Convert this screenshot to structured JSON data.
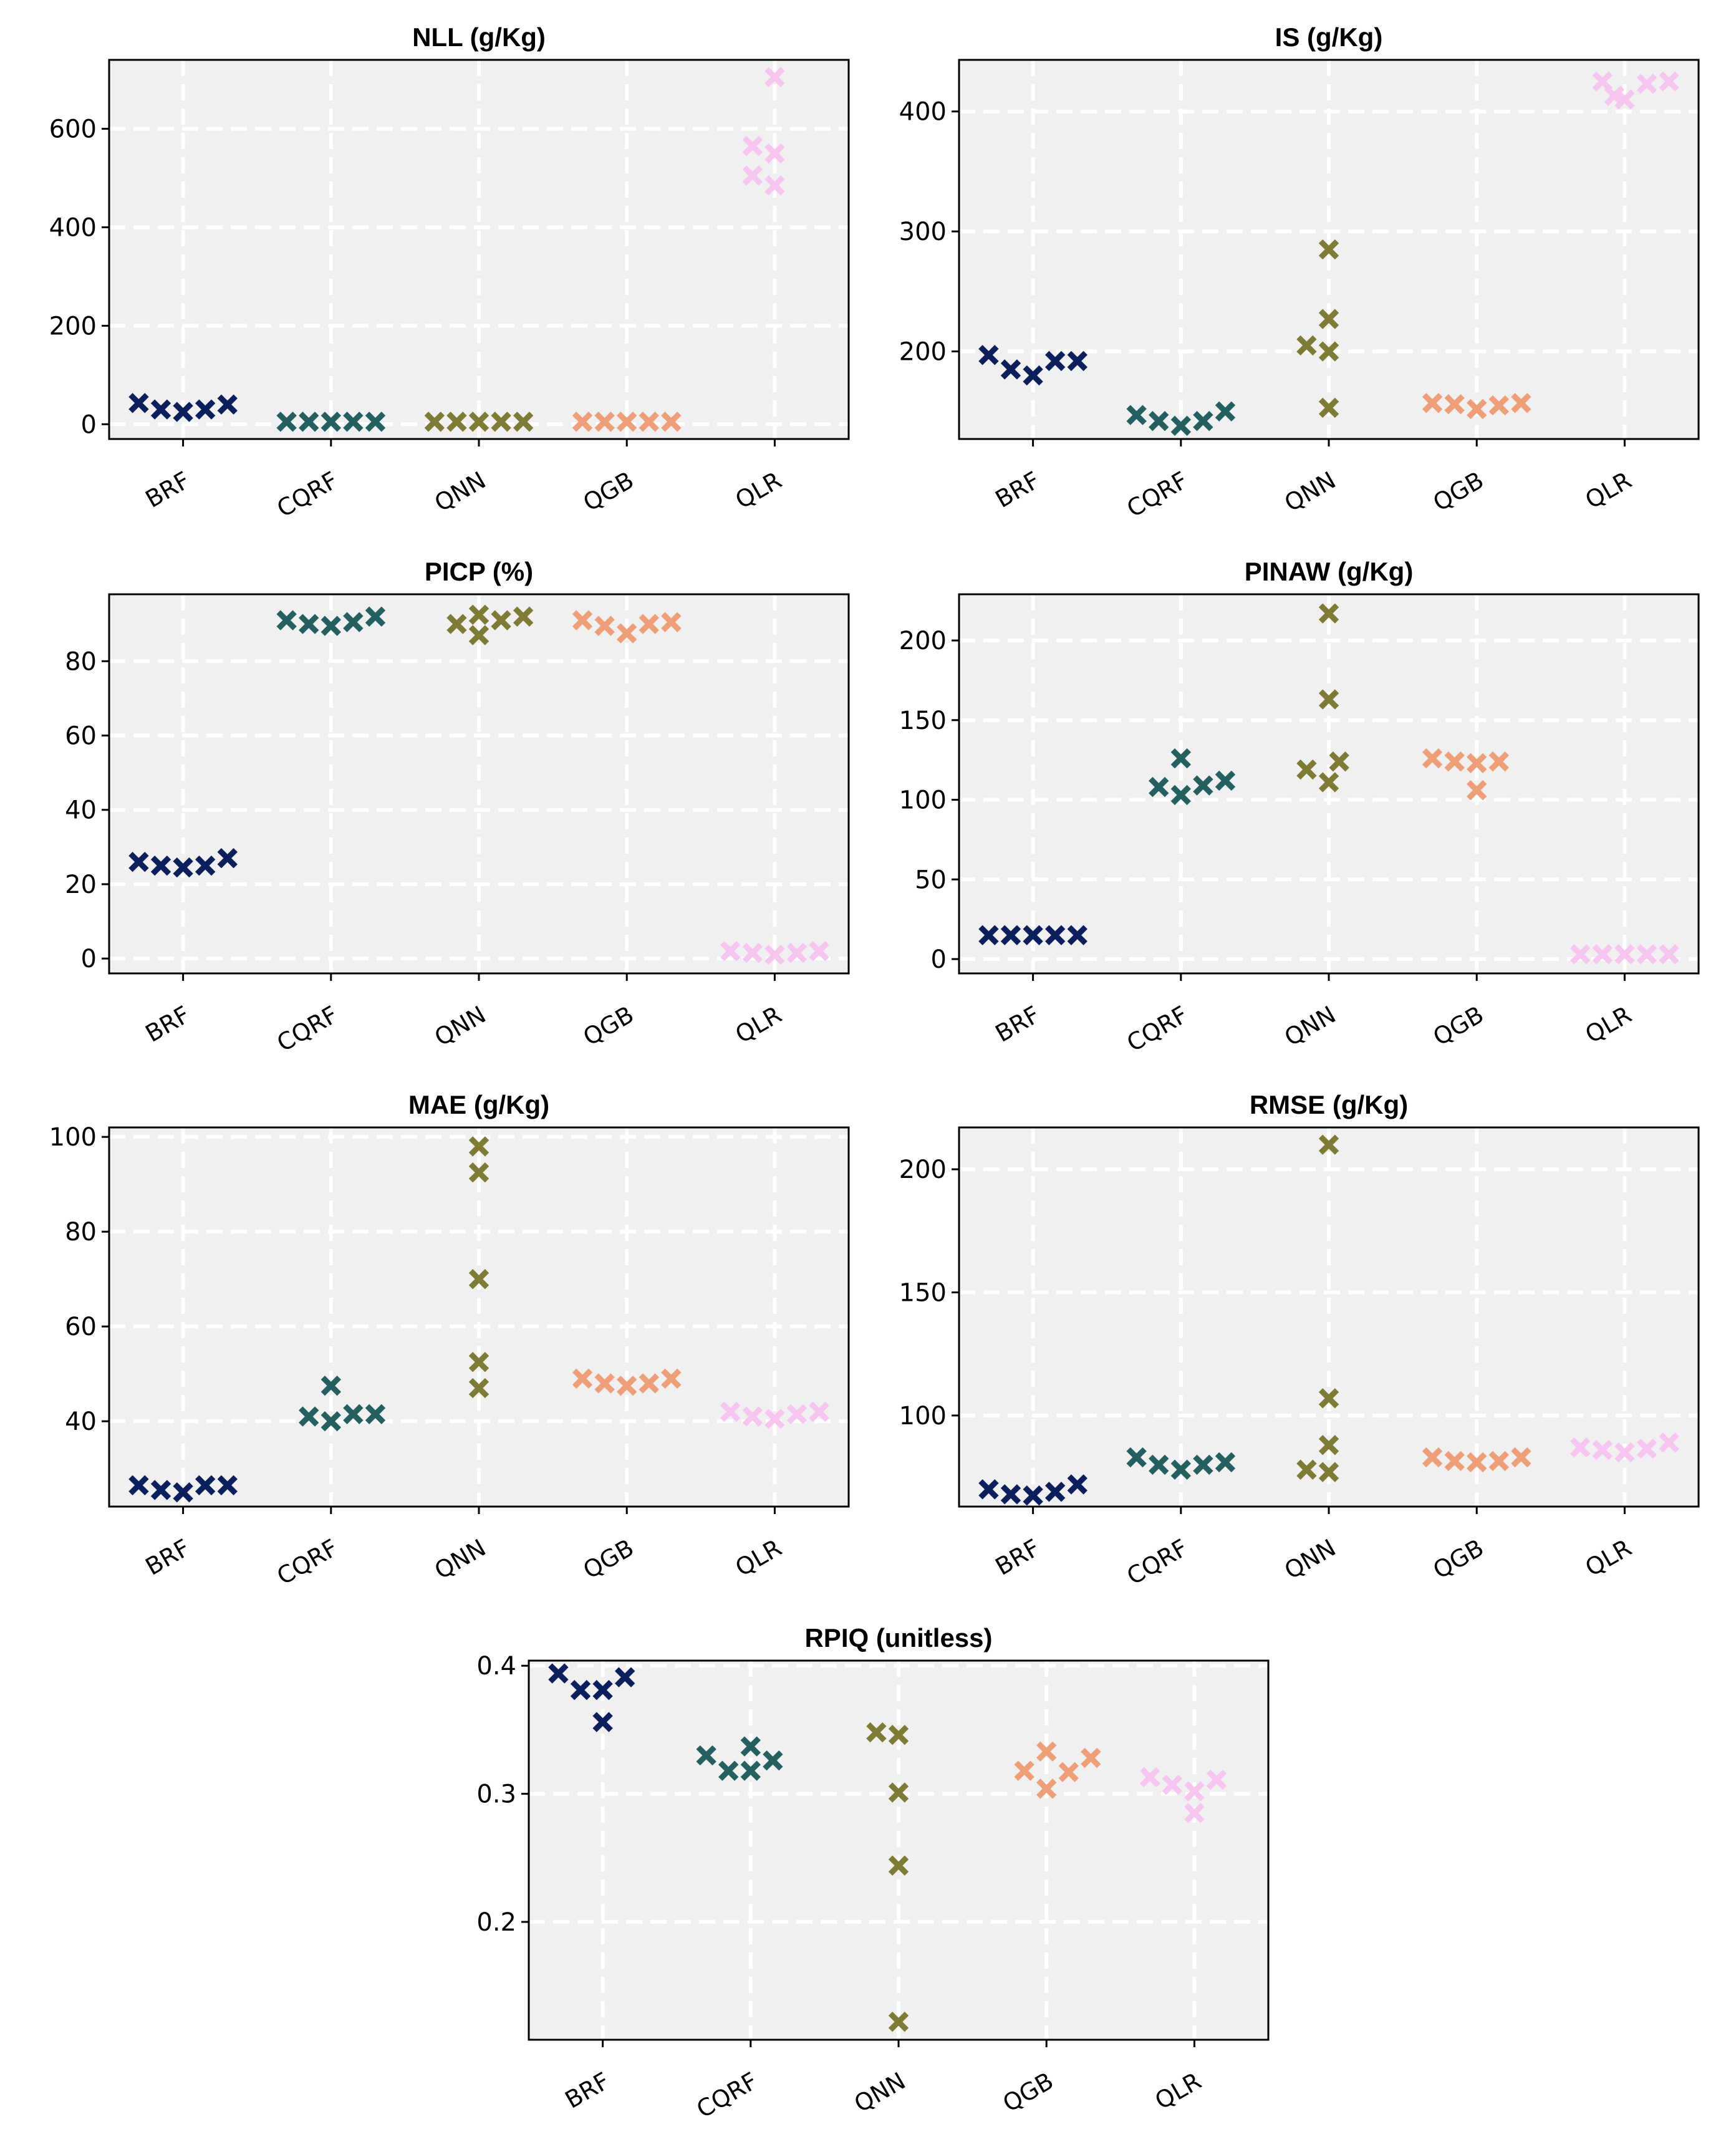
{
  "colors": {
    "plot_background": "#f0f0f0",
    "grid": "#ffffff",
    "axis": "#000000",
    "BRF": "#0b1f5c",
    "CQRF": "#23605f",
    "QNN": "#7e7b35",
    "QGB": "#ee9f78",
    "QLR": "#f7c6f0"
  },
  "chart_data": [
    {
      "type": "scatter",
      "title": "NLL (g/Kg)",
      "categories": [
        "BRF",
        "CQRF",
        "QNN",
        "QGB",
        "QLR"
      ],
      "yticks": [
        "0",
        "200",
        "400",
        "600"
      ],
      "ylim": [
        -30,
        740
      ],
      "grid": true,
      "marker": "x",
      "series": [
        {
          "values": [
            [
              -0.3,
              43
            ],
            [
              -0.15,
              30
            ],
            [
              0.0,
              25
            ],
            [
              0.15,
              30
            ],
            [
              0.3,
              40
            ]
          ]
        },
        {
          "values": [
            [
              -0.3,
              5
            ],
            [
              -0.15,
              5
            ],
            [
              0.0,
              5
            ],
            [
              0.15,
              5
            ],
            [
              0.3,
              5
            ]
          ]
        },
        {
          "values": [
            [
              -0.3,
              5
            ],
            [
              -0.15,
              5
            ],
            [
              0.0,
              5
            ],
            [
              0.15,
              5
            ],
            [
              0.3,
              5
            ]
          ]
        },
        {
          "values": [
            [
              -0.3,
              5
            ],
            [
              -0.15,
              5
            ],
            [
              0.0,
              5
            ],
            [
              0.15,
              5
            ],
            [
              0.3,
              5
            ]
          ]
        },
        {
          "values": [
            [
              -0.15,
              565
            ],
            [
              -0.15,
              505
            ],
            [
              0.0,
              705
            ],
            [
              0.0,
              550
            ],
            [
              0.0,
              485
            ]
          ]
        }
      ]
    },
    {
      "type": "scatter",
      "title": "IS (g/Kg)",
      "categories": [
        "BRF",
        "CQRF",
        "QNN",
        "QGB",
        "QLR"
      ],
      "yticks": [
        "200",
        "300",
        "400"
      ],
      "ylim": [
        127,
        443
      ],
      "grid": true,
      "marker": "x",
      "series": [
        {
          "values": [
            [
              -0.3,
              197
            ],
            [
              -0.15,
              185
            ],
            [
              0.0,
              180
            ],
            [
              0.15,
              192
            ],
            [
              0.3,
              192
            ]
          ]
        },
        {
          "values": [
            [
              -0.3,
              147
            ],
            [
              -0.15,
              142
            ],
            [
              0.0,
              138
            ],
            [
              0.15,
              142
            ],
            [
              0.3,
              150
            ]
          ]
        },
        {
          "values": [
            [
              -0.15,
              205
            ],
            [
              0.0,
              285
            ],
            [
              0.0,
              227
            ],
            [
              0.0,
              200
            ],
            [
              0.0,
              153
            ]
          ]
        },
        {
          "values": [
            [
              -0.3,
              157
            ],
            [
              -0.15,
              156
            ],
            [
              0.0,
              152
            ],
            [
              0.15,
              155
            ],
            [
              0.3,
              157
            ]
          ]
        },
        {
          "values": [
            [
              -0.15,
              425
            ],
            [
              -0.07,
              413
            ],
            [
              0.0,
              410
            ],
            [
              0.15,
              423
            ],
            [
              0.3,
              425
            ]
          ]
        }
      ]
    },
    {
      "type": "scatter",
      "title": "PICP (%)",
      "categories": [
        "BRF",
        "CQRF",
        "QNN",
        "QGB",
        "QLR"
      ],
      "yticks": [
        "0",
        "20",
        "40",
        "60",
        "80"
      ],
      "ylim": [
        -4,
        98
      ],
      "grid": true,
      "marker": "x",
      "series": [
        {
          "values": [
            [
              -0.3,
              26
            ],
            [
              -0.15,
              25
            ],
            [
              0.0,
              24.5
            ],
            [
              0.15,
              25
            ],
            [
              0.3,
              27
            ]
          ]
        },
        {
          "values": [
            [
              -0.3,
              91
            ],
            [
              -0.15,
              90
            ],
            [
              0.0,
              89.5
            ],
            [
              0.15,
              90.5
            ],
            [
              0.3,
              92
            ]
          ]
        },
        {
          "values": [
            [
              -0.15,
              90
            ],
            [
              0.0,
              92.5
            ],
            [
              0.0,
              87
            ],
            [
              0.15,
              91
            ],
            [
              0.3,
              92
            ]
          ]
        },
        {
          "values": [
            [
              -0.3,
              91
            ],
            [
              -0.15,
              89.5
            ],
            [
              0.0,
              87.5
            ],
            [
              0.15,
              90
            ],
            [
              0.3,
              90.5
            ]
          ]
        },
        {
          "values": [
            [
              -0.3,
              2
            ],
            [
              -0.15,
              1.5
            ],
            [
              0.0,
              1
            ],
            [
              0.15,
              1.5
            ],
            [
              0.3,
              2
            ]
          ]
        }
      ]
    },
    {
      "type": "scatter",
      "title": "PINAW (g/Kg)",
      "categories": [
        "BRF",
        "CQRF",
        "QNN",
        "QGB",
        "QLR"
      ],
      "yticks": [
        "0",
        "50",
        "100",
        "150",
        "200"
      ],
      "ylim": [
        -9,
        229
      ],
      "grid": true,
      "marker": "x",
      "series": [
        {
          "values": [
            [
              -0.3,
              15
            ],
            [
              -0.15,
              15
            ],
            [
              0.0,
              15
            ],
            [
              0.15,
              15
            ],
            [
              0.3,
              15
            ]
          ]
        },
        {
          "values": [
            [
              -0.15,
              108
            ],
            [
              0.0,
              126
            ],
            [
              0.0,
              103
            ],
            [
              0.15,
              109
            ],
            [
              0.3,
              112
            ]
          ]
        },
        {
          "values": [
            [
              -0.15,
              119
            ],
            [
              0.0,
              217
            ],
            [
              0.0,
              163
            ],
            [
              0.0,
              111
            ],
            [
              0.07,
              124
            ]
          ]
        },
        {
          "values": [
            [
              -0.3,
              126
            ],
            [
              -0.15,
              124
            ],
            [
              0.0,
              123
            ],
            [
              0.0,
              106
            ],
            [
              0.15,
              124
            ]
          ]
        },
        {
          "values": [
            [
              -0.3,
              3
            ],
            [
              -0.15,
              3
            ],
            [
              0.0,
              3
            ],
            [
              0.15,
              3
            ],
            [
              0.3,
              3
            ]
          ]
        }
      ]
    },
    {
      "type": "scatter",
      "title": "MAE (g/Kg)",
      "categories": [
        "BRF",
        "CQRF",
        "QNN",
        "QGB",
        "QLR"
      ],
      "yticks": [
        "40",
        "60",
        "80",
        "100"
      ],
      "ylim": [
        22,
        102
      ],
      "grid": true,
      "marker": "x",
      "series": [
        {
          "values": [
            [
              -0.3,
              26.5
            ],
            [
              -0.15,
              25.5
            ],
            [
              0.0,
              25
            ],
            [
              0.15,
              26.5
            ],
            [
              0.3,
              26.5
            ]
          ]
        },
        {
          "values": [
            [
              -0.15,
              41
            ],
            [
              0.0,
              47.5
            ],
            [
              0.0,
              40
            ],
            [
              0.15,
              41.5
            ],
            [
              0.3,
              41.5
            ]
          ]
        },
        {
          "values": [
            [
              0.0,
              98
            ],
            [
              0.0,
              92.5
            ],
            [
              0.0,
              70
            ],
            [
              0.0,
              52.5
            ],
            [
              0.0,
              47
            ]
          ]
        },
        {
          "values": [
            [
              -0.3,
              49
            ],
            [
              -0.15,
              48
            ],
            [
              0.0,
              47.5
            ],
            [
              0.15,
              48
            ],
            [
              0.3,
              49
            ]
          ]
        },
        {
          "values": [
            [
              -0.3,
              42
            ],
            [
              -0.15,
              41
            ],
            [
              0.0,
              40.5
            ],
            [
              0.15,
              41.5
            ],
            [
              0.3,
              42
            ]
          ]
        }
      ]
    },
    {
      "type": "scatter",
      "title": "RMSE (g/Kg)",
      "categories": [
        "BRF",
        "CQRF",
        "QNN",
        "QGB",
        "QLR"
      ],
      "yticks": [
        "100",
        "150",
        "200"
      ],
      "ylim": [
        63,
        217
      ],
      "grid": true,
      "marker": "x",
      "series": [
        {
          "values": [
            [
              -0.3,
              70
            ],
            [
              -0.15,
              68
            ],
            [
              0.0,
              67.5
            ],
            [
              0.15,
              69
            ],
            [
              0.3,
              72
            ]
          ]
        },
        {
          "values": [
            [
              -0.3,
              83
            ],
            [
              -0.15,
              80
            ],
            [
              0.0,
              78
            ],
            [
              0.15,
              80
            ],
            [
              0.3,
              81
            ]
          ]
        },
        {
          "values": [
            [
              -0.15,
              78
            ],
            [
              0.0,
              210
            ],
            [
              0.0,
              107
            ],
            [
              0.0,
              88
            ],
            [
              0.0,
              77
            ]
          ]
        },
        {
          "values": [
            [
              -0.3,
              83
            ],
            [
              -0.15,
              81.5
            ],
            [
              0.0,
              81
            ],
            [
              0.15,
              81.5
            ],
            [
              0.3,
              83
            ]
          ]
        },
        {
          "values": [
            [
              -0.3,
              87
            ],
            [
              -0.15,
              86
            ],
            [
              0.0,
              85
            ],
            [
              0.15,
              86.5
            ],
            [
              0.3,
              89
            ]
          ]
        }
      ]
    },
    {
      "type": "scatter",
      "title": "RPIQ (unitless)",
      "categories": [
        "BRF",
        "CQRF",
        "QNN",
        "QGB",
        "QLR"
      ],
      "yticks": [
        "0.2",
        "0.3",
        "0.4"
      ],
      "ylim": [
        0.108,
        0.404
      ],
      "grid": true,
      "marker": "x",
      "series": [
        {
          "values": [
            [
              -0.3,
              0.394
            ],
            [
              -0.15,
              0.381
            ],
            [
              0.0,
              0.381
            ],
            [
              0.0,
              0.356
            ],
            [
              0.15,
              0.391
            ]
          ]
        },
        {
          "values": [
            [
              -0.3,
              0.33
            ],
            [
              -0.15,
              0.318
            ],
            [
              0.0,
              0.337
            ],
            [
              0.0,
              0.318
            ],
            [
              0.15,
              0.326
            ]
          ]
        },
        {
          "values": [
            [
              -0.15,
              0.348
            ],
            [
              0.0,
              0.346
            ],
            [
              0.0,
              0.301
            ],
            [
              0.0,
              0.244
            ],
            [
              0.0,
              0.122
            ]
          ]
        },
        {
          "values": [
            [
              -0.15,
              0.318
            ],
            [
              0.0,
              0.333
            ],
            [
              0.0,
              0.304
            ],
            [
              0.15,
              0.317
            ],
            [
              0.3,
              0.328
            ]
          ]
        },
        {
          "values": [
            [
              -0.3,
              0.313
            ],
            [
              -0.15,
              0.307
            ],
            [
              0.0,
              0.302
            ],
            [
              0.0,
              0.285
            ],
            [
              0.15,
              0.311
            ]
          ]
        }
      ]
    }
  ]
}
